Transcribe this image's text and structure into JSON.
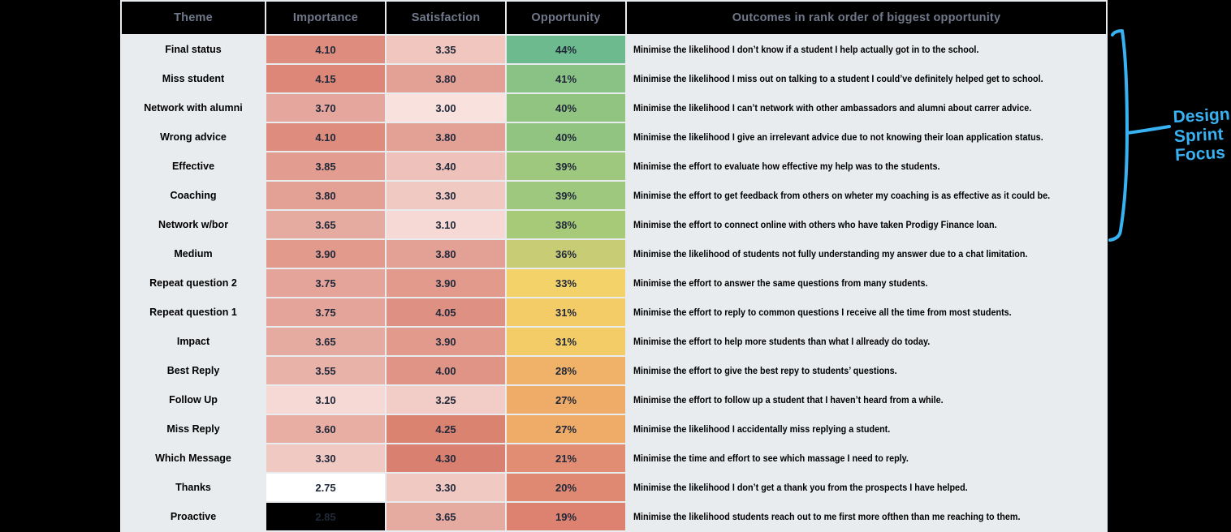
{
  "chart_data": {
    "type": "table",
    "title": "Outcomes in rank order of biggest opportunity",
    "columns": [
      "Theme",
      "Importance",
      "Satisfaction",
      "Opportunity",
      "Outcomes in rank order of biggest opportunity"
    ],
    "rows": [
      {
        "theme": "Final status",
        "importance": 4.1,
        "satisfaction": 3.35,
        "opportunity_pct": 44,
        "outcome": "Minimise the likelihood I don’t know if a student I help actually got in to the school."
      },
      {
        "theme": "Miss student",
        "importance": 4.15,
        "satisfaction": 3.8,
        "opportunity_pct": 41,
        "outcome": "Minimise the likelihood I miss out on talking to a student I could’ve definitely helped get to school."
      },
      {
        "theme": "Network with alumni",
        "importance": 3.7,
        "satisfaction": 3.0,
        "opportunity_pct": 40,
        "outcome": "Minimise the likelihood I can’t network with other ambassadors and alumni about carrer advice."
      },
      {
        "theme": "Wrong advice",
        "importance": 4.1,
        "satisfaction": 3.8,
        "opportunity_pct": 40,
        "outcome": "Minimise the likelihood I give an irrelevant advice due to not knowing their loan application status."
      },
      {
        "theme": "Effective",
        "importance": 3.85,
        "satisfaction": 3.4,
        "opportunity_pct": 39,
        "outcome": "Minimise the effort to evaluate how effective my help was to the students."
      },
      {
        "theme": "Coaching",
        "importance": 3.8,
        "satisfaction": 3.3,
        "opportunity_pct": 39,
        "outcome": "Minimise the effort to get feedback from others on wheter my coaching is as effective as it could be."
      },
      {
        "theme": "Network w/bor",
        "importance": 3.65,
        "satisfaction": 3.1,
        "opportunity_pct": 38,
        "outcome": "Minimise the effort to connect online with others who have taken Prodigy Finance loan."
      },
      {
        "theme": "Medium",
        "importance": 3.9,
        "satisfaction": 3.8,
        "opportunity_pct": 36,
        "outcome": "Minimise the likelihood of students not fully understanding my answer due to a chat limitation."
      },
      {
        "theme": "Repeat question 2",
        "importance": 3.75,
        "satisfaction": 3.9,
        "opportunity_pct": 33,
        "outcome": "Minimise the effort to answer the same questions from many students."
      },
      {
        "theme": "Repeat question 1",
        "importance": 3.75,
        "satisfaction": 4.05,
        "opportunity_pct": 31,
        "outcome": "Minimise the effort to reply to common questions I receive all the time from most students."
      },
      {
        "theme": "Impact",
        "importance": 3.65,
        "satisfaction": 3.9,
        "opportunity_pct": 31,
        "outcome": "Minimise the effort to help more students than what I allready do today."
      },
      {
        "theme": "Best Reply",
        "importance": 3.55,
        "satisfaction": 4.0,
        "opportunity_pct": 28,
        "outcome": "Minimise the effort to give the best repy to students’ questions."
      },
      {
        "theme": "Follow Up",
        "importance": 3.1,
        "satisfaction": 3.25,
        "opportunity_pct": 27,
        "outcome": "Minimise the effort to follow up a student that I haven’t heard from a while."
      },
      {
        "theme": "Miss Reply",
        "importance": 3.6,
        "satisfaction": 4.25,
        "opportunity_pct": 27,
        "outcome": "Minimise the likelihood I accidentally miss replying a student."
      },
      {
        "theme": "Which Message",
        "importance": 3.3,
        "satisfaction": 4.3,
        "opportunity_pct": 21,
        "outcome": "Minimise the time and effort to see which massage I need to reply."
      },
      {
        "theme": "Thanks",
        "importance": 2.75,
        "satisfaction": 3.3,
        "opportunity_pct": 20,
        "outcome": "Minimise the likelihood I don’t get a thank you from the prospects I have helped."
      },
      {
        "theme": "Proactive",
        "importance": 2.85,
        "satisfaction": 3.65,
        "opportunity_pct": 19,
        "outcome": "Minimise the likelihood students reach out to me first more ofthen than me reaching to them."
      }
    ]
  },
  "table": {
    "headers": [
      "Theme",
      "Importance",
      "Satisfaction",
      "Opportunity",
      "Outcomes in rank order of biggest opportunity"
    ],
    "colors": {
      "header_bg": "#000000",
      "header_text": "#70788a",
      "light_row_bg": "#f7f9fb",
      "dark_row_bg": "#000000",
      "cell_text": "#202839",
      "gridline": "#e9ecef"
    },
    "rows": [
      {
        "theme": "Final status",
        "dark": true,
        "importance": "4.10",
        "imp_bg": "#de8c7e",
        "satisfaction": "3.35",
        "sat_bg": "#f0c6bf",
        "opportunity": "44%",
        "opp_bg": "#6cba8e",
        "outcome": "Minimise the likelihood I don’t know if a student I help actually got in to the school."
      },
      {
        "theme": "Miss student",
        "dark": false,
        "importance": "4.15",
        "imp_bg": "#dc8777",
        "satisfaction": "3.80",
        "sat_bg": "#e3a094",
        "opportunity": "41%",
        "opp_bg": "#8ac285",
        "outcome": "Minimise the likelihood I miss out on talking to a student I could’ve definitely helped get to school."
      },
      {
        "theme": "Network with alumni",
        "dark": true,
        "importance": "3.70",
        "imp_bg": "#e5a79d",
        "satisfaction": "3.00",
        "sat_bg": "#f9e2de",
        "opportunity": "40%",
        "opp_bg": "#92c481",
        "outcome": "Minimise the likelihood I can’t network with other ambassadors and alumni about carrer advice."
      },
      {
        "theme": "Wrong advice",
        "dark": false,
        "importance": "4.10",
        "imp_bg": "#de8c7e",
        "satisfaction": "3.80",
        "sat_bg": "#e3a094",
        "opportunity": "40%",
        "opp_bg": "#92c481",
        "outcome": "Minimise the likelihood I give an irrelevant advice due to not knowing their loan application status."
      },
      {
        "theme": "Effective",
        "dark": true,
        "importance": "3.85",
        "imp_bg": "#e29d90",
        "satisfaction": "3.40",
        "sat_bg": "#eec2ba",
        "opportunity": "39%",
        "opp_bg": "#9ec87d",
        "outcome": "Minimise the effort to evaluate how effective my help was to the students."
      },
      {
        "theme": "Coaching",
        "dark": false,
        "importance": "3.80",
        "imp_bg": "#e3a094",
        "satisfaction": "3.30",
        "sat_bg": "#f1c9c3",
        "opportunity": "39%",
        "opp_bg": "#9ec87d",
        "outcome": "Minimise the effort to get feedback from others on wheter my coaching is as effective as it could be."
      },
      {
        "theme": "Network w/bor",
        "dark": true,
        "importance": "3.65",
        "imp_bg": "#e6aba0",
        "satisfaction": "3.10",
        "sat_bg": "#f6d9d4",
        "opportunity": "38%",
        "opp_bg": "#a7ca78",
        "outcome": "Minimise the effort to connect online with others who have taken Prodigy Finance loan."
      },
      {
        "theme": "Medium",
        "dark": false,
        "importance": "3.90",
        "imp_bg": "#e19a8c",
        "satisfaction": "3.80",
        "sat_bg": "#e3a094",
        "opportunity": "36%",
        "opp_bg": "#c8cc74",
        "outcome": "Minimise the likelihood of students not fully understanding my answer due to a chat limitation."
      },
      {
        "theme": "Repeat question 2",
        "dark": true,
        "importance": "3.75",
        "imp_bg": "#e4a499",
        "satisfaction": "3.90",
        "sat_bg": "#e19a8c",
        "opportunity": "33%",
        "opp_bg": "#f3d369",
        "outcome": "Minimise the effort to answer the same questions from many students."
      },
      {
        "theme": "Repeat question 1",
        "dark": false,
        "importance": "3.75",
        "imp_bg": "#e4a499",
        "satisfaction": "4.05",
        "sat_bg": "#de9083",
        "opportunity": "31%",
        "opp_bg": "#f3cc68",
        "outcome": "Minimise the effort to reply to common questions I receive all the time from most students."
      },
      {
        "theme": "Impact",
        "dark": true,
        "importance": "3.65",
        "imp_bg": "#e6aba0",
        "satisfaction": "3.90",
        "sat_bg": "#e19a8c",
        "opportunity": "31%",
        "opp_bg": "#f3cc68",
        "outcome": "Minimise the effort to help more students than what I allready do today."
      },
      {
        "theme": "Best Reply",
        "dark": false,
        "importance": "3.55",
        "imp_bg": "#e9b2a9",
        "satisfaction": "4.00",
        "sat_bg": "#df9486",
        "opportunity": "28%",
        "opp_bg": "#f0b269",
        "outcome": "Minimise the effort to give the best repy to students’ questions."
      },
      {
        "theme": "Follow Up",
        "dark": true,
        "importance": "3.10",
        "imp_bg": "#f6d9d4",
        "satisfaction": "3.25",
        "sat_bg": "#f2ccc6",
        "opportunity": "27%",
        "opp_bg": "#efac69",
        "outcome": "Minimise the effort to follow up a student that I haven’t heard from a while."
      },
      {
        "theme": "Miss Reply",
        "dark": false,
        "importance": "3.60",
        "imp_bg": "#e8aea4",
        "satisfaction": "4.25",
        "sat_bg": "#da8371",
        "opportunity": "27%",
        "opp_bg": "#efac69",
        "outcome": "Minimise the likelihood I accidentally miss replying a student."
      },
      {
        "theme": "Which Message",
        "dark": true,
        "importance": "3.30",
        "imp_bg": "#f1c9c3",
        "satisfaction": "4.30",
        "sat_bg": "#d98070",
        "opportunity": "21%",
        "opp_bg": "#e08d74",
        "outcome": "Minimise the time and effort to see which massage I need to reply."
      },
      {
        "theme": "Thanks",
        "dark": false,
        "importance": "2.75",
        "imp_bg": "#ffffff",
        "satisfaction": "3.30",
        "sat_bg": "#f1c9c3",
        "opportunity": "20%",
        "opp_bg": "#df8973",
        "outcome": "Minimise the likelihood I don’t get a thank you from the prospects I have helped."
      },
      {
        "theme": "Proactive",
        "dark": true,
        "importance": "2.85",
        "imp_bg": "#000000",
        "satisfaction": "3.65",
        "sat_bg": "#e6aba0",
        "opportunity": "19%",
        "opp_bg": "#dd8170",
        "outcome": "Minimise the likelihood students reach out to me first more ofthen than me reaching to them."
      }
    ]
  },
  "annotation": {
    "lines": [
      "Design",
      "Sprint",
      "Focus"
    ],
    "color": "#38b2f2"
  }
}
